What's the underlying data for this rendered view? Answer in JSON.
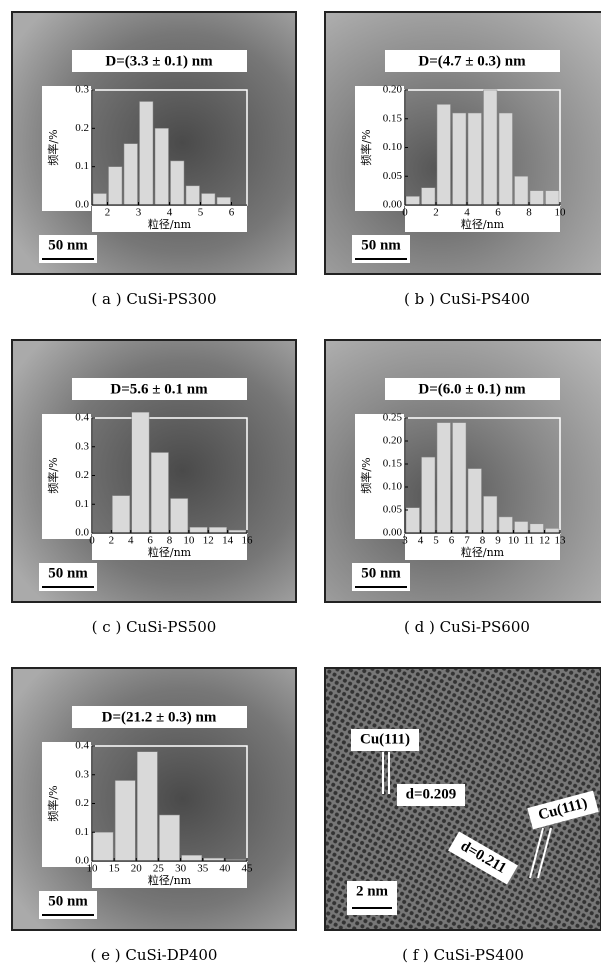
{
  "chart_data": [
    {
      "type": "histogram",
      "annotation": "D=(3.3 ± 0.1) nm",
      "xlabel": "粒径/nm",
      "ylabel": "频率/%",
      "scale_bar": "50 nm",
      "caption": "( a ) CuSi-PS300",
      "color": "#d9d9d9",
      "bins": [
        1.5,
        2.0,
        2.5,
        3.0,
        3.5,
        4.0,
        4.5,
        5.0,
        5.5,
        6.0
      ],
      "counts": [
        0.03,
        0.1,
        0.16,
        0.27,
        0.2,
        0.115,
        0.05,
        0.03,
        0.02
      ],
      "xlim": [
        1.5,
        6.5
      ],
      "xticks": [
        2,
        3,
        4,
        5,
        6
      ],
      "ylim": [
        0,
        0.3
      ],
      "yticks": [
        {
          "value": 0,
          "label": "0.0"
        },
        0.1,
        0.2,
        0.3
      ]
    },
    {
      "type": "histogram",
      "annotation": "D=(4.7 ± 0.3) nm",
      "xlabel": "粒径/nm",
      "ylabel": "频率/%",
      "scale_bar": "50 nm",
      "caption": "( b ) CuSi-PS400",
      "color": "#d9d9d9",
      "bins": [
        0,
        1,
        2,
        3,
        4,
        5,
        6,
        7,
        8,
        9,
        10
      ],
      "counts": [
        0.015,
        0.03,
        0.175,
        0.16,
        0.16,
        0.2,
        0.16,
        0.05,
        0.025,
        0.025
      ],
      "xlim": [
        0,
        10
      ],
      "xticks": [
        0,
        2,
        4,
        6,
        8,
        10
      ],
      "ylim": [
        0,
        0.2
      ],
      "yticks": [
        {
          "value": 0,
          "label": "0.00"
        },
        {
          "value": 0.05,
          "label": "0.05"
        },
        {
          "value": 0.1,
          "label": "0.10"
        },
        {
          "value": 0.15,
          "label": "0.15"
        },
        {
          "value": 0.2,
          "label": "0.20"
        }
      ]
    },
    {
      "type": "histogram",
      "annotation": "D=5.6 ± 0.1 nm",
      "xlabel": "粒径/nm",
      "ylabel": "频率/%",
      "scale_bar": "50 nm",
      "caption": "( c ) CuSi-PS500",
      "color": "#d9d9d9",
      "bins": [
        2,
        4,
        6,
        8,
        10,
        12,
        14,
        16
      ],
      "counts": [
        0.13,
        0.42,
        0.28,
        0.12,
        0.02,
        0.02,
        0.01
      ],
      "xlim": [
        0,
        16
      ],
      "xticks": [
        0,
        2,
        4,
        6,
        8,
        10,
        12,
        14,
        16
      ],
      "ylim": [
        0,
        0.4
      ],
      "yticks": [
        {
          "value": 0,
          "label": "0.0"
        },
        0.1,
        0.2,
        0.3,
        0.4
      ]
    },
    {
      "type": "histogram",
      "annotation": "D=(6.0 ± 0.1) nm",
      "xlabel": "粒径/nm",
      "ylabel": "频率/%",
      "scale_bar": "50 nm",
      "caption": "( d ) CuSi-PS600",
      "color": "#d9d9d9",
      "bins": [
        3,
        4,
        5,
        6,
        7,
        8,
        9,
        10,
        11,
        12,
        13
      ],
      "counts": [
        0.055,
        0.165,
        0.24,
        0.24,
        0.14,
        0.08,
        0.035,
        0.025,
        0.02,
        0.01
      ],
      "xlim": [
        3,
        13
      ],
      "xticks": [
        3,
        4,
        5,
        6,
        7,
        8,
        9,
        10,
        11,
        12,
        13
      ],
      "ylim": [
        0,
        0.25
      ],
      "yticks": [
        {
          "value": 0,
          "label": "0.00"
        },
        {
          "value": 0.05,
          "label": "0.05"
        },
        {
          "value": 0.1,
          "label": "0.10"
        },
        {
          "value": 0.15,
          "label": "0.15"
        },
        {
          "value": 0.2,
          "label": "0.20"
        },
        {
          "value": 0.25,
          "label": "0.25"
        }
      ]
    },
    {
      "type": "histogram",
      "annotation": "D=(21.2 ± 0.3) nm",
      "xlabel": "粒径/nm",
      "ylabel": "频率/%",
      "scale_bar": "50 nm",
      "caption": "( e ) CuSi-DP400",
      "color": "#d9d9d9",
      "bins": [
        10,
        15,
        20,
        25,
        30,
        35,
        40,
        45
      ],
      "counts": [
        0.1,
        0.28,
        0.38,
        0.16,
        0.02,
        0.01,
        0.005
      ],
      "xlim": [
        10,
        45
      ],
      "xticks": [
        10,
        15,
        20,
        25,
        30,
        35,
        40,
        45
      ],
      "ylim": [
        0,
        0.4
      ],
      "yticks": [
        {
          "value": 0,
          "label": "0.0"
        },
        0.1,
        0.2,
        0.3,
        0.4
      ]
    }
  ],
  "hrtem": {
    "caption": "( f ) CuSi-PS400",
    "labels": [
      "Cu(111)",
      "d=0.209",
      "Cu(111)",
      "d=0.211"
    ],
    "scale_bar": "2 nm"
  }
}
